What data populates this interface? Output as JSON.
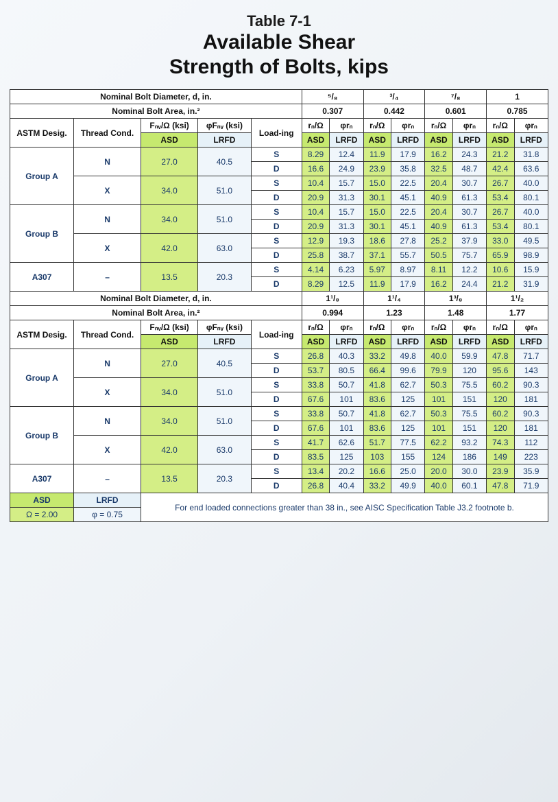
{
  "title": {
    "line1": "Table 7-1",
    "line2": "Available Shear",
    "line3": "Strength of Bolts, kips"
  },
  "colors": {
    "asd_header": "#c6e96f",
    "asd_cell": "#d4ee86",
    "lrfd_header": "#e6f1f8",
    "lrfd_cell": "#f0f6fb",
    "border": "#333333",
    "text_value": "#1a3a6a",
    "page_bg": "#eef2f6"
  },
  "header_labels": {
    "diameter_row": "Nominal Bolt Diameter, d, in.",
    "area_row": "Nominal Bolt Area, in.²",
    "astm": "ASTM Desig.",
    "thread": "Thread Cond.",
    "fnv_asd": "Fₙᵥ/Ω (ksi)",
    "fnv_lrfd": "φFₙᵥ (ksi)",
    "loading": "Load-ing",
    "rn_asd": "rₙ/Ω",
    "rn_lrfd": "φrₙ",
    "ASD": "ASD",
    "LRFD": "LRFD"
  },
  "upper": {
    "diameters": [
      "⁵/₈",
      "³/₄",
      "⁷/₈",
      "1"
    ],
    "areas": [
      "0.307",
      "0.442",
      "0.601",
      "0.785"
    ],
    "rows": [
      {
        "astm": "Group A",
        "thread": "N",
        "fnv_asd": "27.0",
        "fnv_lrfd": "40.5",
        "load": "S",
        "v": [
          "8.29",
          "12.4",
          "11.9",
          "17.9",
          "16.2",
          "24.3",
          "21.2",
          "31.8"
        ]
      },
      {
        "astm": "",
        "thread": "",
        "fnv_asd": "",
        "fnv_lrfd": "",
        "load": "D",
        "v": [
          "16.6",
          "24.9",
          "23.9",
          "35.8",
          "32.5",
          "48.7",
          "42.4",
          "63.6"
        ]
      },
      {
        "astm": "",
        "thread": "X",
        "fnv_asd": "34.0",
        "fnv_lrfd": "51.0",
        "load": "S",
        "v": [
          "10.4",
          "15.7",
          "15.0",
          "22.5",
          "20.4",
          "30.7",
          "26.7",
          "40.0"
        ]
      },
      {
        "astm": "",
        "thread": "",
        "fnv_asd": "",
        "fnv_lrfd": "",
        "load": "D",
        "v": [
          "20.9",
          "31.3",
          "30.1",
          "45.1",
          "40.9",
          "61.3",
          "53.4",
          "80.1"
        ]
      },
      {
        "astm": "Group B",
        "thread": "N",
        "fnv_asd": "34.0",
        "fnv_lrfd": "51.0",
        "load": "S",
        "v": [
          "10.4",
          "15.7",
          "15.0",
          "22.5",
          "20.4",
          "30.7",
          "26.7",
          "40.0"
        ]
      },
      {
        "astm": "",
        "thread": "",
        "fnv_asd": "",
        "fnv_lrfd": "",
        "load": "D",
        "v": [
          "20.9",
          "31.3",
          "30.1",
          "45.1",
          "40.9",
          "61.3",
          "53.4",
          "80.1"
        ]
      },
      {
        "astm": "",
        "thread": "X",
        "fnv_asd": "42.0",
        "fnv_lrfd": "63.0",
        "load": "S",
        "v": [
          "12.9",
          "19.3",
          "18.6",
          "27.8",
          "25.2",
          "37.9",
          "33.0",
          "49.5"
        ]
      },
      {
        "astm": "",
        "thread": "",
        "fnv_asd": "",
        "fnv_lrfd": "",
        "load": "D",
        "v": [
          "25.8",
          "38.7",
          "37.1",
          "55.7",
          "50.5",
          "75.7",
          "65.9",
          "98.9"
        ]
      },
      {
        "astm": "A307",
        "thread": "–",
        "fnv_asd": "13.5",
        "fnv_lrfd": "20.3",
        "load": "S",
        "v": [
          "4.14",
          "6.23",
          "5.97",
          "8.97",
          "8.11",
          "12.2",
          "10.6",
          "15.9"
        ]
      },
      {
        "astm": "",
        "thread": "",
        "fnv_asd": "",
        "fnv_lrfd": "",
        "load": "D",
        "v": [
          "8.29",
          "12.5",
          "11.9",
          "17.9",
          "16.2",
          "24.4",
          "21.2",
          "31.9"
        ]
      }
    ]
  },
  "lower": {
    "diameters": [
      "1¹/₈",
      "1¹/₄",
      "1³/₈",
      "1¹/₂"
    ],
    "areas": [
      "0.994",
      "1.23",
      "1.48",
      "1.77"
    ],
    "rows": [
      {
        "astm": "Group A",
        "thread": "N",
        "fnv_asd": "27.0",
        "fnv_lrfd": "40.5",
        "load": "S",
        "v": [
          "26.8",
          "40.3",
          "33.2",
          "49.8",
          "40.0",
          "59.9",
          "47.8",
          "71.7"
        ]
      },
      {
        "astm": "",
        "thread": "",
        "fnv_asd": "",
        "fnv_lrfd": "",
        "load": "D",
        "v": [
          "53.7",
          "80.5",
          "66.4",
          "99.6",
          "79.9",
          "120",
          "95.6",
          "143"
        ]
      },
      {
        "astm": "",
        "thread": "X",
        "fnv_asd": "34.0",
        "fnv_lrfd": "51.0",
        "load": "S",
        "v": [
          "33.8",
          "50.7",
          "41.8",
          "62.7",
          "50.3",
          "75.5",
          "60.2",
          "90.3"
        ]
      },
      {
        "astm": "",
        "thread": "",
        "fnv_asd": "",
        "fnv_lrfd": "",
        "load": "D",
        "v": [
          "67.6",
          "101",
          "83.6",
          "125",
          "101",
          "151",
          "120",
          "181"
        ]
      },
      {
        "astm": "Group B",
        "thread": "N",
        "fnv_asd": "34.0",
        "fnv_lrfd": "51.0",
        "load": "S",
        "v": [
          "33.8",
          "50.7",
          "41.8",
          "62.7",
          "50.3",
          "75.5",
          "60.2",
          "90.3"
        ]
      },
      {
        "astm": "",
        "thread": "",
        "fnv_asd": "",
        "fnv_lrfd": "",
        "load": "D",
        "v": [
          "67.6",
          "101",
          "83.6",
          "125",
          "101",
          "151",
          "120",
          "181"
        ]
      },
      {
        "astm": "",
        "thread": "X",
        "fnv_asd": "42.0",
        "fnv_lrfd": "63.0",
        "load": "S",
        "v": [
          "41.7",
          "62.6",
          "51.7",
          "77.5",
          "62.2",
          "93.2",
          "74.3",
          "112"
        ]
      },
      {
        "astm": "",
        "thread": "",
        "fnv_asd": "",
        "fnv_lrfd": "",
        "load": "D",
        "v": [
          "83.5",
          "125",
          "103",
          "155",
          "124",
          "186",
          "149",
          "223"
        ]
      },
      {
        "astm": "A307",
        "thread": "–",
        "fnv_asd": "13.5",
        "fnv_lrfd": "20.3",
        "load": "S",
        "v": [
          "13.4",
          "20.2",
          "16.6",
          "25.0",
          "20.0",
          "30.0",
          "23.9",
          "35.9"
        ]
      },
      {
        "astm": "",
        "thread": "",
        "fnv_asd": "",
        "fnv_lrfd": "",
        "load": "D",
        "v": [
          "26.8",
          "40.4",
          "33.2",
          "49.9",
          "40.0",
          "60.1",
          "47.8",
          "71.9"
        ]
      }
    ]
  },
  "footer": {
    "asd_label": "ASD",
    "lrfd_label": "LRFD",
    "note": "For end loaded connections greater than 38 in., see AISC Specification Table J3.2 footnote b.",
    "omega": "Ω = 2.00",
    "phi": "φ = 0.75"
  }
}
